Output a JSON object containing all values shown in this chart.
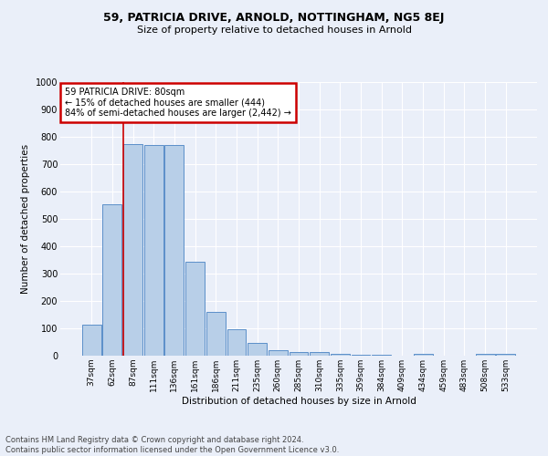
{
  "title1": "59, PATRICIA DRIVE, ARNOLD, NOTTINGHAM, NG5 8EJ",
  "title2": "Size of property relative to detached houses in Arnold",
  "xlabel": "Distribution of detached houses by size in Arnold",
  "ylabel": "Number of detached properties",
  "categories": [
    "37sqm",
    "62sqm",
    "87sqm",
    "111sqm",
    "136sqm",
    "161sqm",
    "186sqm",
    "211sqm",
    "235sqm",
    "260sqm",
    "285sqm",
    "310sqm",
    "335sqm",
    "359sqm",
    "384sqm",
    "409sqm",
    "434sqm",
    "459sqm",
    "483sqm",
    "508sqm",
    "533sqm"
  ],
  "values": [
    115,
    555,
    775,
    770,
    770,
    345,
    160,
    97,
    48,
    20,
    14,
    12,
    7,
    4,
    2,
    0,
    8,
    0,
    0,
    8,
    8
  ],
  "bar_color": "#b8cfe8",
  "bar_edge_color": "#5b8fc9",
  "background_color": "#eaeff9",
  "grid_color": "#ffffff",
  "annotation_text_line1": "59 PATRICIA DRIVE: 80sqm",
  "annotation_text_line2": "← 15% of detached houses are smaller (444)",
  "annotation_text_line3": "84% of semi-detached houses are larger (2,442) →",
  "annotation_box_facecolor": "#ffffff",
  "annotation_box_edgecolor": "#cc0000",
  "red_line_color": "#cc0000",
  "footer_line1": "Contains HM Land Registry data © Crown copyright and database right 2024.",
  "footer_line2": "Contains public sector information licensed under the Open Government Licence v3.0.",
  "ylim": [
    0,
    1000
  ],
  "yticks": [
    0,
    100,
    200,
    300,
    400,
    500,
    600,
    700,
    800,
    900,
    1000
  ]
}
